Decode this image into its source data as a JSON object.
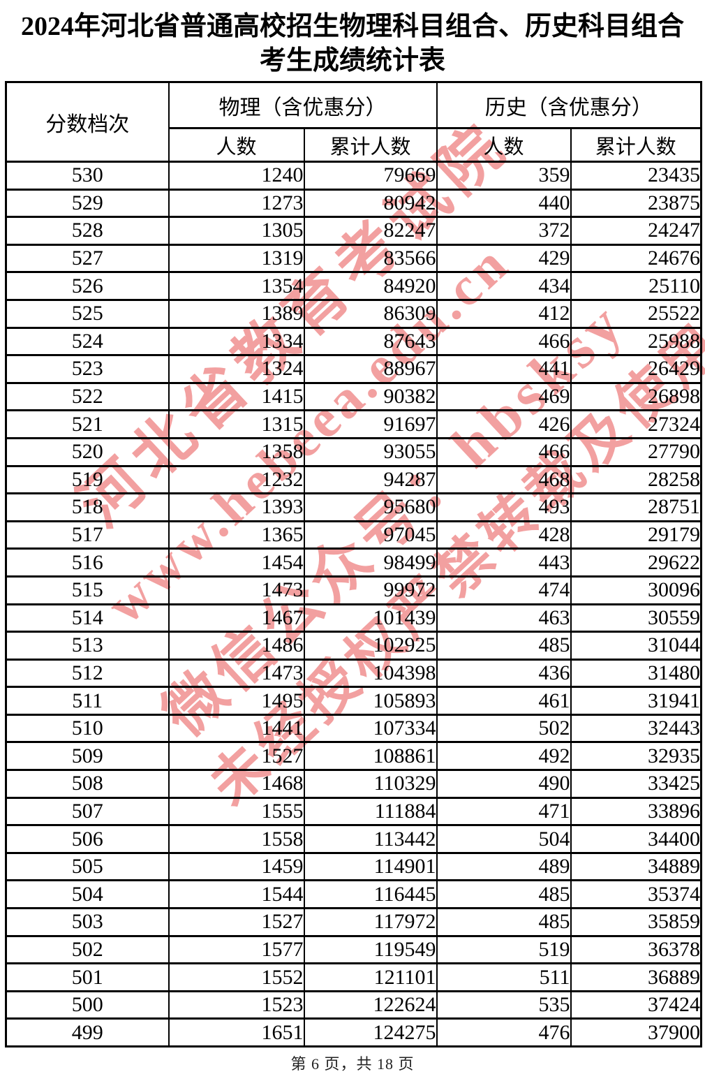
{
  "page": {
    "title_line1": "2024年河北省普通高校招生物理科目组合、历史科目组合",
    "title_line2": "考生成绩统计表",
    "footer": "第 6 页，共 18 页"
  },
  "watermark": {
    "color": "#e96262",
    "lines": [
      "河北省教育考试院",
      "www.hebeea.edu.cn",
      "微信公众号：hbsksy",
      "未经授权严禁转载及使用"
    ]
  },
  "table": {
    "headers": {
      "score_band": "分数档次",
      "physics_group": "物理（含优惠分）",
      "history_group": "历史（含优惠分）",
      "count": "人数",
      "cumulative": "累计人数"
    },
    "rows": [
      [
        "530",
        "1240",
        "79669",
        "359",
        "23435"
      ],
      [
        "529",
        "1273",
        "80942",
        "440",
        "23875"
      ],
      [
        "528",
        "1305",
        "82247",
        "372",
        "24247"
      ],
      [
        "527",
        "1319",
        "83566",
        "429",
        "24676"
      ],
      [
        "526",
        "1354",
        "84920",
        "434",
        "25110"
      ],
      [
        "525",
        "1389",
        "86309",
        "412",
        "25522"
      ],
      [
        "524",
        "1334",
        "87643",
        "466",
        "25988"
      ],
      [
        "523",
        "1324",
        "88967",
        "441",
        "26429"
      ],
      [
        "522",
        "1415",
        "90382",
        "469",
        "26898"
      ],
      [
        "521",
        "1315",
        "91697",
        "426",
        "27324"
      ],
      [
        "520",
        "1358",
        "93055",
        "466",
        "27790"
      ],
      [
        "519",
        "1232",
        "94287",
        "468",
        "28258"
      ],
      [
        "518",
        "1393",
        "95680",
        "493",
        "28751"
      ],
      [
        "517",
        "1365",
        "97045",
        "428",
        "29179"
      ],
      [
        "516",
        "1454",
        "98499",
        "443",
        "29622"
      ],
      [
        "515",
        "1473",
        "99972",
        "474",
        "30096"
      ],
      [
        "514",
        "1467",
        "101439",
        "463",
        "30559"
      ],
      [
        "513",
        "1486",
        "102925",
        "485",
        "31044"
      ],
      [
        "512",
        "1473",
        "104398",
        "436",
        "31480"
      ],
      [
        "511",
        "1495",
        "105893",
        "461",
        "31941"
      ],
      [
        "510",
        "1441",
        "107334",
        "502",
        "32443"
      ],
      [
        "509",
        "1527",
        "108861",
        "492",
        "32935"
      ],
      [
        "508",
        "1468",
        "110329",
        "490",
        "33425"
      ],
      [
        "507",
        "1555",
        "111884",
        "471",
        "33896"
      ],
      [
        "506",
        "1558",
        "113442",
        "504",
        "34400"
      ],
      [
        "505",
        "1459",
        "114901",
        "489",
        "34889"
      ],
      [
        "504",
        "1544",
        "116445",
        "485",
        "35374"
      ],
      [
        "503",
        "1527",
        "117972",
        "485",
        "35859"
      ],
      [
        "502",
        "1577",
        "119549",
        "519",
        "36378"
      ],
      [
        "501",
        "1552",
        "121101",
        "511",
        "36889"
      ],
      [
        "500",
        "1523",
        "122624",
        "535",
        "37424"
      ],
      [
        "499",
        "1651",
        "124275",
        "476",
        "37900"
      ]
    ]
  }
}
